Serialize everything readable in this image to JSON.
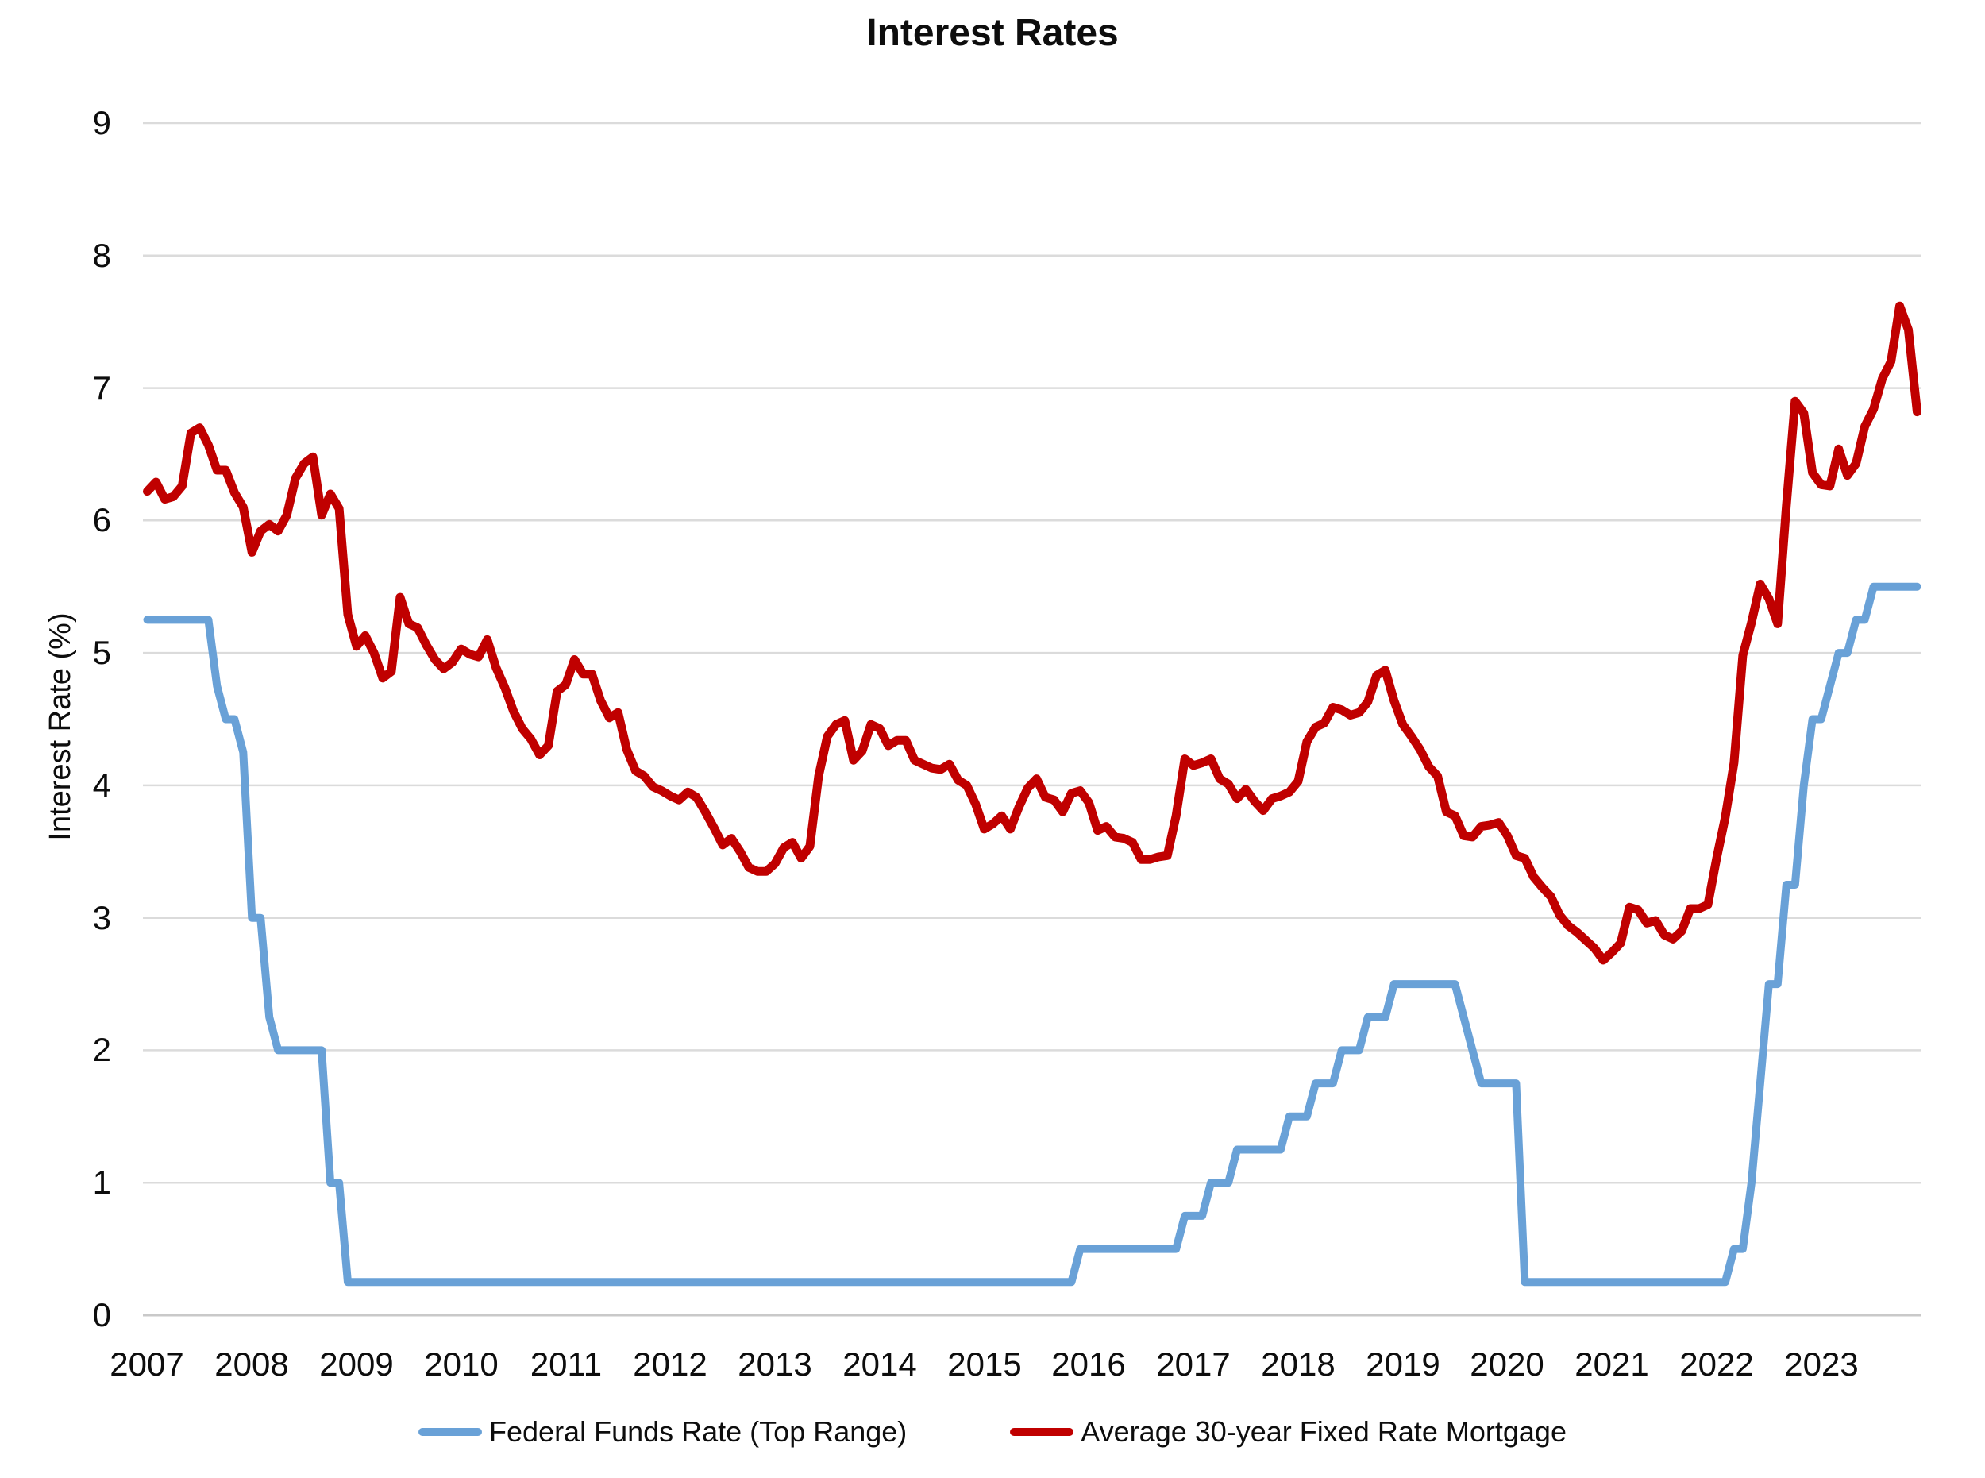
{
  "chart": {
    "title": "Interest Rates",
    "y_axis_label": "Interest Rate (%)"
  },
  "chart_data": {
    "type": "line",
    "title": "Interest Rates",
    "xlabel": "",
    "ylabel": "Interest Rate (%)",
    "ylim": [
      0,
      9
    ],
    "y_ticks": [
      0,
      1,
      2,
      3,
      4,
      5,
      6,
      7,
      8,
      9
    ],
    "x_tick_years": [
      2007,
      2008,
      2009,
      2010,
      2011,
      2012,
      2013,
      2014,
      2015,
      2016,
      2017,
      2018,
      2019,
      2020,
      2021,
      2022,
      2023
    ],
    "x_frequency": "monthly",
    "x_start": "2007-01",
    "x_end": "2023-12",
    "grid": "horizontal",
    "legend_position": "bottom",
    "colors": {
      "gridline": "#DBDBDB",
      "axis_line": "#C9C9C9",
      "background": "#FFFFFF",
      "text": "#0D0D0D"
    },
    "series": [
      {
        "name": "Federal Funds Rate (Top Range)",
        "color": "#69A1D7",
        "stroke_width": 10,
        "values": [
          5.25,
          5.25,
          5.25,
          5.25,
          5.25,
          5.25,
          5.25,
          5.25,
          4.75,
          4.5,
          4.5,
          4.25,
          3.0,
          3.0,
          2.25,
          2.0,
          2.0,
          2.0,
          2.0,
          2.0,
          2.0,
          1.0,
          1.0,
          0.25,
          0.25,
          0.25,
          0.25,
          0.25,
          0.25,
          0.25,
          0.25,
          0.25,
          0.25,
          0.25,
          0.25,
          0.25,
          0.25,
          0.25,
          0.25,
          0.25,
          0.25,
          0.25,
          0.25,
          0.25,
          0.25,
          0.25,
          0.25,
          0.25,
          0.25,
          0.25,
          0.25,
          0.25,
          0.25,
          0.25,
          0.25,
          0.25,
          0.25,
          0.25,
          0.25,
          0.25,
          0.25,
          0.25,
          0.25,
          0.25,
          0.25,
          0.25,
          0.25,
          0.25,
          0.25,
          0.25,
          0.25,
          0.25,
          0.25,
          0.25,
          0.25,
          0.25,
          0.25,
          0.25,
          0.25,
          0.25,
          0.25,
          0.25,
          0.25,
          0.25,
          0.25,
          0.25,
          0.25,
          0.25,
          0.25,
          0.25,
          0.25,
          0.25,
          0.25,
          0.25,
          0.25,
          0.25,
          0.25,
          0.25,
          0.25,
          0.25,
          0.25,
          0.25,
          0.25,
          0.25,
          0.25,
          0.25,
          0.25,
          0.5,
          0.5,
          0.5,
          0.5,
          0.5,
          0.5,
          0.5,
          0.5,
          0.5,
          0.5,
          0.5,
          0.5,
          0.75,
          0.75,
          0.75,
          1.0,
          1.0,
          1.0,
          1.25,
          1.25,
          1.25,
          1.25,
          1.25,
          1.25,
          1.5,
          1.5,
          1.5,
          1.75,
          1.75,
          1.75,
          2.0,
          2.0,
          2.0,
          2.25,
          2.25,
          2.25,
          2.5,
          2.5,
          2.5,
          2.5,
          2.5,
          2.5,
          2.5,
          2.5,
          2.25,
          2.0,
          1.75,
          1.75,
          1.75,
          1.75,
          1.75,
          0.25,
          0.25,
          0.25,
          0.25,
          0.25,
          0.25,
          0.25,
          0.25,
          0.25,
          0.25,
          0.25,
          0.25,
          0.25,
          0.25,
          0.25,
          0.25,
          0.25,
          0.25,
          0.25,
          0.25,
          0.25,
          0.25,
          0.25,
          0.25,
          0.5,
          0.5,
          1.0,
          1.75,
          2.5,
          2.5,
          3.25,
          3.25,
          4.0,
          4.5,
          4.5,
          4.75,
          5.0,
          5.0,
          5.25,
          5.25,
          5.5,
          5.5,
          5.5,
          5.5,
          5.5,
          5.5
        ]
      },
      {
        "name": "Average 30-year Fixed Rate Mortgage",
        "color": "#C00000",
        "stroke_width": 11,
        "values": [
          6.22,
          6.29,
          6.16,
          6.18,
          6.26,
          6.66,
          6.7,
          6.57,
          6.38,
          6.38,
          6.21,
          6.1,
          5.76,
          5.92,
          5.97,
          5.92,
          6.04,
          6.32,
          6.43,
          6.48,
          6.04,
          6.2,
          6.09,
          5.29,
          5.05,
          5.13,
          5.0,
          4.81,
          4.86,
          5.42,
          5.22,
          5.19,
          5.06,
          4.95,
          4.88,
          4.93,
          5.03,
          4.99,
          4.97,
          5.1,
          4.89,
          4.74,
          4.56,
          4.43,
          4.35,
          4.23,
          4.3,
          4.71,
          4.76,
          4.95,
          4.84,
          4.84,
          4.64,
          4.51,
          4.55,
          4.27,
          4.11,
          4.07,
          3.99,
          3.96,
          3.92,
          3.89,
          3.95,
          3.91,
          3.8,
          3.68,
          3.55,
          3.6,
          3.5,
          3.38,
          3.35,
          3.35,
          3.41,
          3.53,
          3.57,
          3.45,
          3.54,
          4.07,
          4.37,
          4.46,
          4.49,
          4.19,
          4.26,
          4.46,
          4.43,
          4.3,
          4.34,
          4.34,
          4.19,
          4.16,
          4.13,
          4.12,
          4.16,
          4.04,
          4.0,
          3.86,
          3.67,
          3.71,
          3.77,
          3.67,
          3.84,
          3.98,
          4.05,
          3.91,
          3.89,
          3.8,
          3.94,
          3.96,
          3.87,
          3.66,
          3.69,
          3.61,
          3.6,
          3.57,
          3.44,
          3.44,
          3.46,
          3.47,
          3.77,
          4.2,
          4.15,
          4.17,
          4.2,
          4.05,
          4.01,
          3.9,
          3.97,
          3.88,
          3.81,
          3.9,
          3.92,
          3.95,
          4.03,
          4.33,
          4.44,
          4.47,
          4.59,
          4.57,
          4.53,
          4.55,
          4.63,
          4.83,
          4.87,
          4.64,
          4.46,
          4.37,
          4.27,
          4.14,
          4.07,
          3.8,
          3.77,
          3.62,
          3.61,
          3.69,
          3.7,
          3.72,
          3.62,
          3.47,
          3.45,
          3.31,
          3.23,
          3.16,
          3.02,
          2.94,
          2.89,
          2.83,
          2.77,
          2.68,
          2.74,
          2.81,
          3.08,
          3.06,
          2.96,
          2.98,
          2.87,
          2.84,
          2.9,
          3.07,
          3.07,
          3.1,
          3.45,
          3.76,
          4.17,
          4.98,
          5.23,
          5.52,
          5.41,
          5.22,
          6.11,
          6.9,
          6.81,
          6.36,
          6.27,
          6.26,
          6.54,
          6.34,
          6.43,
          6.71,
          6.84,
          7.07,
          7.2,
          7.62,
          7.44,
          6.82
        ]
      }
    ]
  }
}
